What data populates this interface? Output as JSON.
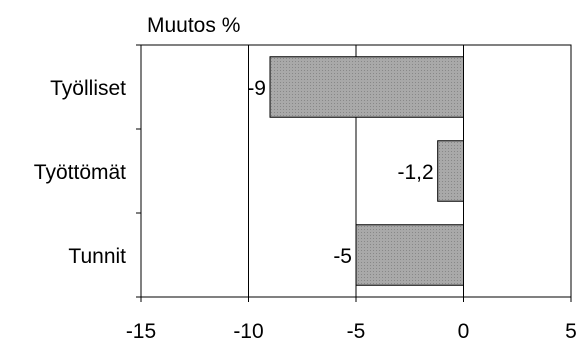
{
  "chart_data": {
    "type": "bar",
    "orientation": "horizontal",
    "title": "Muutos %",
    "categories": [
      "Työlliset",
      "Työttömät",
      "Tunnit"
    ],
    "values": [
      -9,
      -1.2,
      -5
    ],
    "data_labels": [
      "-9",
      "-1,2",
      "-5"
    ],
    "xlim": [
      -15,
      5
    ],
    "x_ticks": [
      -15,
      -10,
      -5,
      0,
      5
    ],
    "x_tick_labels": [
      "-15",
      "-10",
      "-5",
      "0",
      "5"
    ],
    "grid": "vertical",
    "legend": "none",
    "bar_color": "#a9a9a9"
  }
}
